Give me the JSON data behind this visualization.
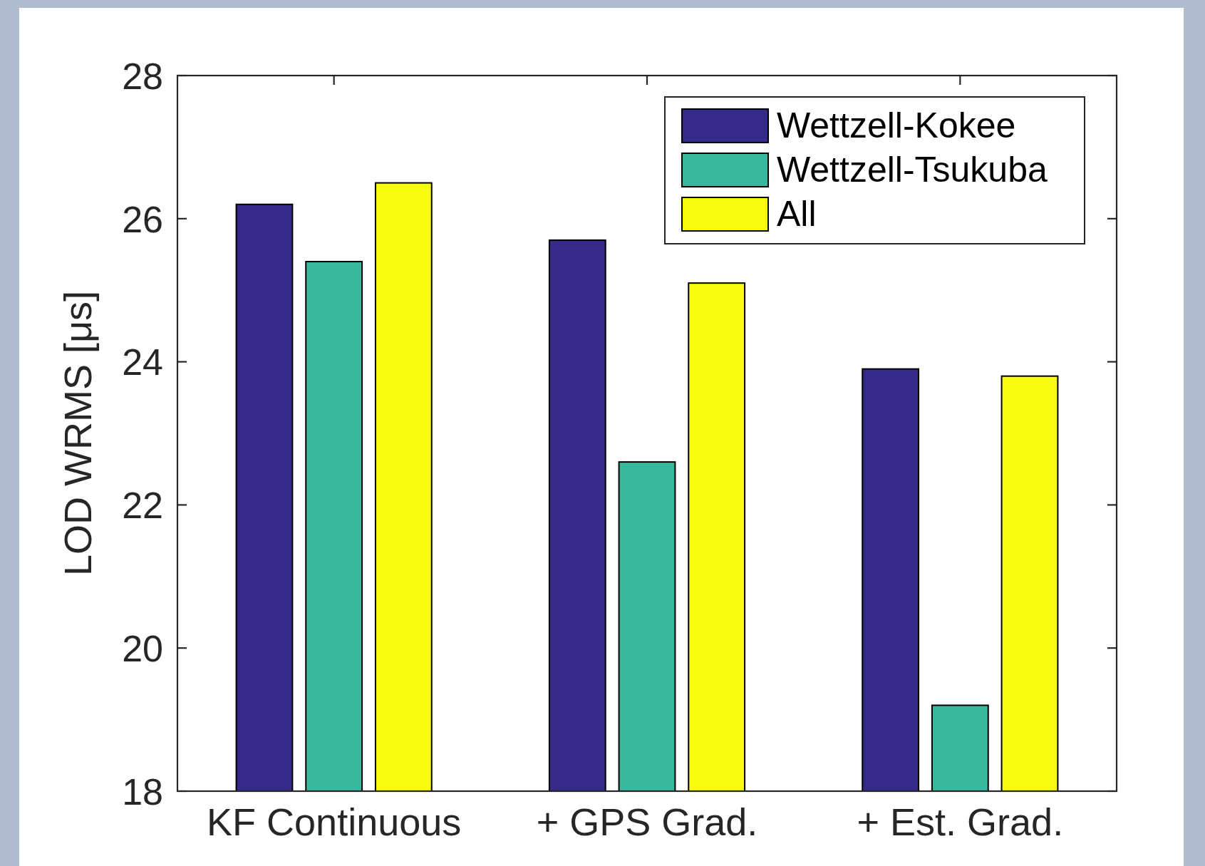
{
  "chart_data": {
    "type": "bar",
    "ylabel": "LOD WRMS [μs]",
    "categories": [
      "KF Continuous",
      "+ GPS Grad.",
      "+ Est. Grad."
    ],
    "series": [
      {
        "name": "Wettzell-Kokee",
        "color": "#352a87",
        "values": [
          26.2,
          25.7,
          23.9
        ]
      },
      {
        "name": "Wettzell-Tsukuba",
        "color": "#38b99e",
        "values": [
          25.4,
          22.6,
          19.2
        ]
      },
      {
        "name": "All",
        "color": "#f9fb0e",
        "values": [
          26.5,
          25.1,
          23.8
        ]
      }
    ],
    "ylim": [
      18,
      28
    ],
    "yticks": [
      18,
      20,
      22,
      24,
      26,
      28
    ],
    "grid": false,
    "legend": "top right"
  }
}
